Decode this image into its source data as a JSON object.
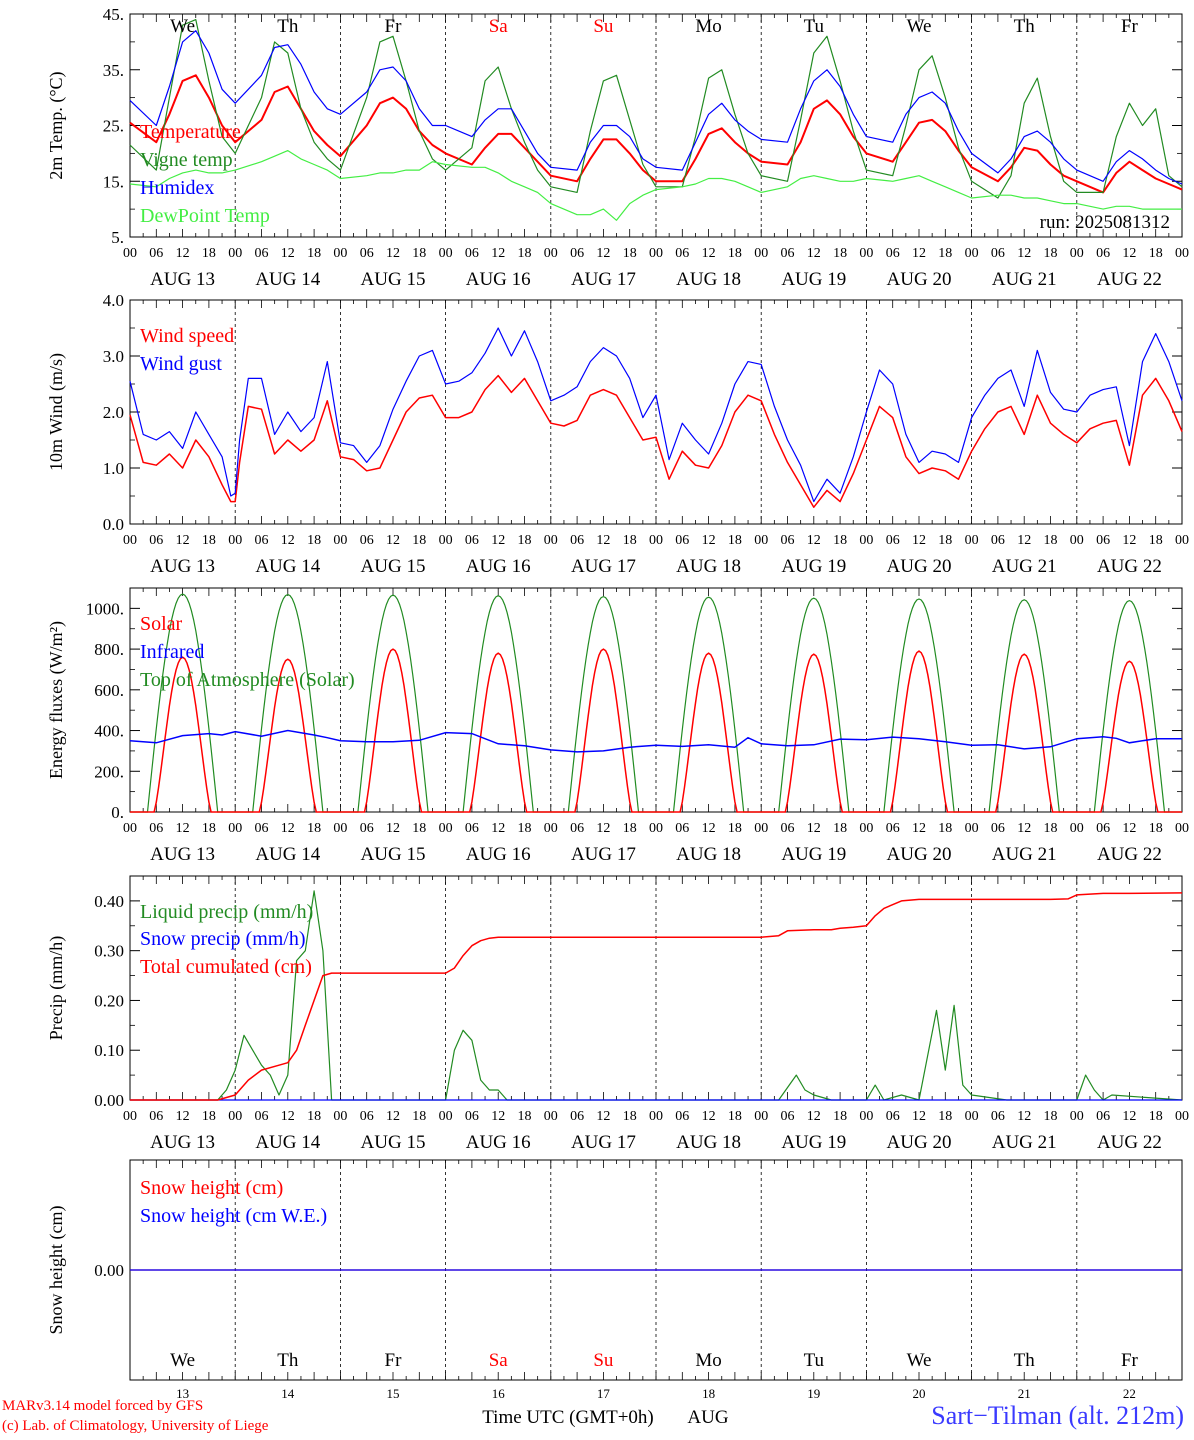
{
  "days_abbrev": [
    "We",
    "Th",
    "Fr",
    "Sa",
    "Su",
    "Mo",
    "Tu",
    "We",
    "Th",
    "Fr"
  ],
  "day_colors": [
    "#000000",
    "#000000",
    "#000000",
    "#ff0000",
    "#ff0000",
    "#000000",
    "#000000",
    "#000000",
    "#000000",
    "#000000"
  ],
  "date_labels": [
    "AUG 13",
    "AUG 14",
    "AUG 15",
    "AUG 16",
    "AUG 17",
    "AUG 18",
    "AUG 19",
    "AUG 20",
    "AUG 21",
    "AUG 22"
  ],
  "day_numbers": [
    "13",
    "14",
    "15",
    "16",
    "17",
    "18",
    "19",
    "20",
    "21",
    "22"
  ],
  "hour_ticks": [
    "00",
    "06",
    "12",
    "18"
  ],
  "hour_end": "00",
  "x_axis_title": "Time UTC (GMT+0h)",
  "month_label": "AUG",
  "credits": [
    "MARv3.14 model forced by GFS",
    "(c) Lab. of Climatology, University of Liege"
  ],
  "station": "Sart−Tilman (alt. 212m)",
  "run_label": "run: 2025081312",
  "chart_data": [
    {
      "type": "line",
      "ylabel": "2m Temp. (°C)",
      "ylim": [
        5,
        45
      ],
      "yticks": [
        "5.",
        "15.",
        "25.",
        "35.",
        "45."
      ],
      "ytick_values": [
        5,
        15,
        25,
        35,
        45
      ],
      "x_hours": [
        0,
        6,
        9,
        12,
        15,
        18,
        21,
        24,
        30,
        33,
        36,
        39,
        42,
        45,
        48,
        54,
        57,
        60,
        63,
        66,
        69,
        72,
        78,
        81,
        84,
        87,
        90,
        93,
        96,
        102,
        105,
        108,
        111,
        114,
        117,
        120,
        126,
        129,
        132,
        135,
        138,
        141,
        144,
        150,
        153,
        156,
        159,
        162,
        165,
        168,
        174,
        177,
        180,
        183,
        186,
        189,
        192,
        198,
        201,
        204,
        207,
        210,
        213,
        216,
        222,
        225,
        228,
        231,
        234,
        237,
        240
      ],
      "series": [
        {
          "name": "Temperature",
          "color": "#ff0000",
          "width": 2,
          "values": [
            25.5,
            22,
            27,
            33,
            34,
            30,
            25,
            22,
            26,
            31,
            32,
            28,
            24,
            21.5,
            19.5,
            25,
            29,
            30,
            28,
            24,
            21.5,
            20,
            18,
            21,
            23.5,
            23.5,
            21,
            18.5,
            16,
            15,
            19,
            22.5,
            22.5,
            20,
            17,
            15,
            15,
            19,
            23.5,
            24.5,
            22,
            20,
            18.5,
            18,
            22,
            28,
            29.5,
            27,
            23,
            20,
            18.5,
            22,
            25.5,
            26,
            24,
            20.5,
            17.5,
            15,
            17.5,
            21,
            20.5,
            18,
            16,
            15,
            13,
            16.5,
            18.5,
            17,
            15.5,
            14.5,
            13.5
          ]
        },
        {
          "name": "Vigne temp",
          "color": "#228b22",
          "width": 1.2,
          "values": [
            21.5,
            17,
            30,
            43,
            44,
            33,
            23,
            20,
            30,
            40,
            38,
            28,
            22,
            19,
            17,
            30,
            40,
            41,
            33,
            24,
            19,
            17,
            21,
            33,
            35.5,
            28,
            22,
            17,
            14,
            13,
            24,
            33,
            34,
            26,
            18,
            14,
            14,
            23,
            33.5,
            35,
            27,
            20,
            16,
            15,
            26,
            38,
            41,
            33,
            24,
            17,
            16,
            25,
            35,
            37.5,
            30,
            21,
            15,
            12,
            16,
            29,
            33.5,
            23,
            15,
            13,
            13,
            23,
            29,
            25,
            28,
            16,
            14
          ]
        },
        {
          "name": "Humidex",
          "color": "#0000ff",
          "width": 1.2,
          "values": [
            29.5,
            25,
            32,
            40,
            42,
            38,
            31.5,
            29,
            34,
            39,
            39.5,
            36,
            31,
            28,
            27,
            31,
            35,
            35.5,
            33,
            28,
            25,
            25,
            23,
            26,
            28,
            28,
            24,
            20,
            17.5,
            17,
            22,
            25,
            25,
            23,
            19,
            17.5,
            17,
            22,
            27,
            29,
            26,
            24,
            22.5,
            22,
            28,
            33,
            35,
            32,
            27,
            23,
            22,
            27,
            30,
            31,
            29,
            24,
            20,
            16.5,
            19,
            23,
            24,
            22,
            19,
            17,
            15,
            18.5,
            20.5,
            19,
            17,
            15.5,
            14.5
          ]
        },
        {
          "name": "DewPoint Temp",
          "color": "#44ee44",
          "width": 1.2,
          "values": [
            14.5,
            14,
            15.5,
            16.5,
            17,
            16.5,
            16.5,
            17,
            18.5,
            19.5,
            20.5,
            19,
            18,
            17,
            15.5,
            16,
            16.5,
            16.5,
            17,
            17,
            18.5,
            18,
            17.5,
            17.5,
            16.5,
            15,
            14,
            13,
            11,
            9,
            9,
            10,
            8,
            11,
            12.5,
            13.5,
            14,
            14.5,
            15.5,
            15.5,
            15,
            14,
            13,
            14,
            15.5,
            16,
            15.5,
            15,
            15,
            15.5,
            15,
            15.5,
            16,
            15,
            14,
            13,
            12,
            12.5,
            12.5,
            12,
            12,
            11.5,
            11,
            11,
            10,
            10.5,
            10.5,
            10,
            10,
            10,
            10
          ]
        }
      ]
    },
    {
      "type": "line",
      "ylabel": "10m Wind (m/s)",
      "ylim": [
        0,
        4
      ],
      "yticks": [
        "0.0",
        "1.0",
        "2.0",
        "3.0",
        "4.0"
      ],
      "ytick_values": [
        0,
        1,
        2,
        3,
        4
      ],
      "x_hours": [
        0,
        3,
        6,
        9,
        12,
        15,
        18,
        21,
        23,
        24,
        25,
        27,
        30,
        33,
        36,
        39,
        42,
        45,
        48,
        51,
        54,
        57,
        60,
        63,
        66,
        69,
        72,
        75,
        78,
        81,
        84,
        87,
        90,
        93,
        96,
        99,
        102,
        105,
        108,
        111,
        114,
        117,
        120,
        123,
        126,
        129,
        132,
        135,
        138,
        141,
        144,
        147,
        150,
        153,
        156,
        159,
        162,
        165,
        168,
        171,
        174,
        177,
        180,
        183,
        186,
        189,
        192,
        195,
        198,
        201,
        204,
        207,
        210,
        213,
        216,
        219,
        222,
        225,
        228,
        231,
        234,
        237,
        240
      ],
      "series": [
        {
          "name": "Wind speed",
          "color": "#ff0000",
          "width": 1.5,
          "values": [
            1.95,
            1.1,
            1.05,
            1.25,
            1.0,
            1.5,
            1.2,
            0.7,
            0.4,
            0.4,
            1.1,
            2.1,
            2.05,
            1.25,
            1.5,
            1.3,
            1.5,
            2.2,
            1.2,
            1.15,
            0.95,
            1.0,
            1.5,
            2.0,
            2.25,
            2.3,
            1.9,
            1.9,
            2.0,
            2.4,
            2.65,
            2.35,
            2.6,
            2.2,
            1.8,
            1.75,
            1.85,
            2.3,
            2.4,
            2.3,
            1.9,
            1.5,
            1.55,
            0.8,
            1.3,
            1.05,
            1.0,
            1.4,
            2.0,
            2.3,
            2.2,
            1.6,
            1.1,
            0.7,
            0.3,
            0.6,
            0.4,
            0.9,
            1.5,
            2.1,
            1.9,
            1.2,
            0.9,
            1.0,
            0.95,
            0.8,
            1.3,
            1.7,
            2.0,
            2.1,
            1.6,
            2.3,
            1.8,
            1.6,
            1.45,
            1.7,
            1.8,
            1.85,
            1.05,
            2.3,
            2.6,
            2.2,
            1.65
          ]
        },
        {
          "name": "Wind gust",
          "color": "#0000ff",
          "width": 1.2,
          "values": [
            2.55,
            1.6,
            1.5,
            1.65,
            1.35,
            2.0,
            1.6,
            1.2,
            0.5,
            0.55,
            1.5,
            2.6,
            2.6,
            1.6,
            2.0,
            1.65,
            1.9,
            2.9,
            1.45,
            1.4,
            1.1,
            1.4,
            2.05,
            2.55,
            3.0,
            3.1,
            2.5,
            2.55,
            2.7,
            3.05,
            3.5,
            3.0,
            3.45,
            2.9,
            2.2,
            2.3,
            2.45,
            2.9,
            3.15,
            3.0,
            2.6,
            1.9,
            2.3,
            1.15,
            1.8,
            1.5,
            1.25,
            1.8,
            2.5,
            2.9,
            2.85,
            2.1,
            1.5,
            1.05,
            0.4,
            0.8,
            0.55,
            1.2,
            2.0,
            2.75,
            2.5,
            1.6,
            1.1,
            1.3,
            1.25,
            1.1,
            1.9,
            2.3,
            2.6,
            2.75,
            2.1,
            3.1,
            2.35,
            2.05,
            2.0,
            2.3,
            2.4,
            2.45,
            1.4,
            2.9,
            3.4,
            2.9,
            2.2
          ]
        }
      ]
    },
    {
      "type": "line",
      "ylabel": "Energy fluxes (W/m²)",
      "ylim": [
        0,
        1100
      ],
      "yticks": [
        "0.",
        "200.",
        "400.",
        "600.",
        "800.",
        "1000."
      ],
      "ytick_values": [
        0,
        200,
        400,
        600,
        800,
        1000
      ],
      "solar_peaks": [
        760,
        750,
        800,
        780,
        800,
        780,
        775,
        790,
        775,
        740
      ],
      "toa_peaks": [
        1070,
        1068,
        1065,
        1062,
        1058,
        1055,
        1050,
        1046,
        1042,
        1038
      ],
      "infrared": {
        "x_hours": [
          0,
          6,
          12,
          18,
          21,
          24,
          30,
          36,
          42,
          45,
          48,
          54,
          60,
          66,
          72,
          78,
          84,
          90,
          96,
          102,
          108,
          114,
          120,
          126,
          132,
          138,
          141,
          144,
          150,
          156,
          162,
          168,
          174,
          180,
          186,
          192,
          198,
          204,
          210,
          216,
          222,
          225,
          228,
          234,
          240
        ],
        "values": [
          350,
          340,
          375,
          385,
          378,
          395,
          372,
          400,
          378,
          365,
          350,
          345,
          345,
          352,
          390,
          385,
          335,
          325,
          305,
          295,
          300,
          318,
          328,
          322,
          330,
          318,
          365,
          335,
          325,
          330,
          358,
          355,
          368,
          360,
          345,
          328,
          330,
          310,
          320,
          360,
          370,
          362,
          340,
          360,
          360
        ]
      },
      "series_names": [
        "Solar",
        "Infrared",
        "Top of Atmosphere (Solar)"
      ],
      "series_colors": [
        "#ff0000",
        "#0000ff",
        "#228b22"
      ]
    },
    {
      "type": "line",
      "ylabel": "Precip (mm/h)",
      "ylim": [
        0,
        0.45
      ],
      "yticks": [
        "0.00",
        "0.10",
        "0.20",
        "0.30",
        "0.40"
      ],
      "ytick_values": [
        0,
        0.1,
        0.2,
        0.3,
        0.4
      ],
      "series": [
        {
          "name": "Liquid precip (mm/h)",
          "color": "#228b22",
          "width": 1.2,
          "x_hours": [
            0,
            20,
            22,
            24,
            26,
            28,
            30,
            32,
            34,
            36,
            38,
            40,
            42,
            44,
            46,
            48,
            72,
            74,
            76,
            78,
            80,
            82,
            84,
            86,
            144,
            148,
            152,
            154,
            156,
            160,
            168,
            170,
            172,
            176,
            180,
            184,
            186,
            188,
            190,
            192,
            200,
            216,
            218,
            220,
            222,
            224,
            240
          ],
          "values": [
            0,
            0,
            0.02,
            0.06,
            0.13,
            0.1,
            0.07,
            0.05,
            0.01,
            0.05,
            0.28,
            0.3,
            0.42,
            0.3,
            0,
            0,
            0,
            0.1,
            0.14,
            0.12,
            0.04,
            0.02,
            0.02,
            0,
            0,
            0,
            0.05,
            0.02,
            0.01,
            0,
            0,
            0.03,
            0,
            0.01,
            0,
            0.18,
            0.06,
            0.19,
            0.03,
            0.01,
            0,
            0,
            0.05,
            0.02,
            0,
            0.01,
            0
          ]
        },
        {
          "name": "Snow precip (mm/h)",
          "color": "#0000ff",
          "width": 1.2,
          "x_hours": [
            0,
            240
          ],
          "values": [
            0,
            0
          ]
        },
        {
          "name": "Total cumulated (cm)",
          "color": "#ff0000",
          "width": 1.5,
          "x_hours": [
            0,
            20,
            24,
            27,
            30,
            34,
            36,
            38,
            40,
            42,
            44,
            46,
            48,
            60,
            72,
            74,
            76,
            78,
            80,
            82,
            84,
            96,
            120,
            144,
            148,
            150,
            156,
            160,
            162,
            165,
            168,
            170,
            172,
            176,
            180,
            186,
            196,
            210,
            214,
            216,
            222,
            228,
            240
          ],
          "values": [
            0,
            0,
            0.01,
            0.04,
            0.06,
            0.07,
            0.075,
            0.1,
            0.15,
            0.2,
            0.25,
            0.255,
            0.255,
            0.255,
            0.255,
            0.265,
            0.29,
            0.31,
            0.32,
            0.325,
            0.327,
            0.327,
            0.327,
            0.327,
            0.33,
            0.34,
            0.342,
            0.342,
            0.345,
            0.347,
            0.35,
            0.37,
            0.385,
            0.4,
            0.403,
            0.403,
            0.403,
            0.403,
            0.404,
            0.412,
            0.415,
            0.415,
            0.416
          ]
        }
      ]
    },
    {
      "type": "line",
      "ylabel": "Snow height (cm)",
      "ylim": [
        -1,
        1
      ],
      "yticks": [
        "0.00"
      ],
      "ytick_values": [
        0
      ],
      "series": [
        {
          "name": "Snow height (cm)",
          "color": "#ff0000",
          "width": 1.2,
          "x_hours": [
            0,
            240
          ],
          "values": [
            0,
            0
          ]
        },
        {
          "name": "Snow height (cm W.E.)",
          "color": "#0000ff",
          "width": 1.2,
          "x_hours": [
            0,
            240
          ],
          "values": [
            0,
            0
          ]
        }
      ]
    }
  ]
}
